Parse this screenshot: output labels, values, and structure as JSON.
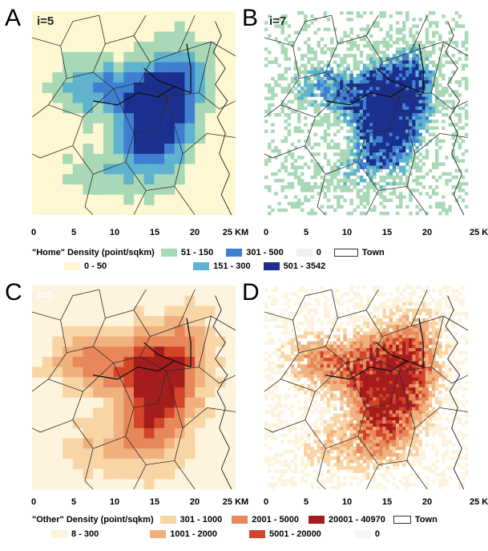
{
  "panels": [
    {
      "letter": "A",
      "iter": "i=5",
      "kind": "home",
      "res": 5
    },
    {
      "letter": "B",
      "iter": "i=7",
      "kind": "home",
      "res": 7
    },
    {
      "letter": "C",
      "iter": "i=5",
      "kind": "other",
      "res": 5
    },
    {
      "letter": "D",
      "iter": "i=7",
      "kind": "other",
      "res": 7
    }
  ],
  "axis": {
    "ticks": [
      "0",
      "5",
      "10",
      "15",
      "20"
    ],
    "last_tick": "25 KM",
    "last_tick_right": "25 K"
  },
  "home_legend": {
    "title": "\"Home\" Density (point/sqkm)",
    "classes": [
      {
        "label": "0 - 50",
        "color": "#fdf8d2"
      },
      {
        "label": "51 - 150",
        "color": "#a8d8b5"
      },
      {
        "label": "151 - 300",
        "color": "#5fb3cf"
      },
      {
        "label": "301 - 500",
        "color": "#3f7fd1"
      },
      {
        "label": "501 - 3542",
        "color": "#1b2f8f"
      },
      {
        "label": "0",
        "color": "#f1f1f1"
      }
    ],
    "town_label": "Town"
  },
  "other_legend": {
    "title": "\"Other\" Density (point/sqkm)",
    "classes": [
      {
        "label": "8 - 300",
        "color": "#fef3dc"
      },
      {
        "label": "301 - 1000",
        "color": "#f9d5a6"
      },
      {
        "label": "1001 - 2000",
        "color": "#f0b17e"
      },
      {
        "label": "2001 - 5000",
        "color": "#e8875a"
      },
      {
        "label": "5001 - 20000",
        "color": "#d2452a"
      },
      {
        "label": "20001 - 40970",
        "color": "#a51c1c"
      },
      {
        "label": "0",
        "color": "#f6f6f6"
      }
    ],
    "town_label": "Town"
  },
  "colors": {
    "town_line": "#2b2b2b",
    "home_background": "#fdf8d2",
    "other_background": "#fef3dc"
  }
}
